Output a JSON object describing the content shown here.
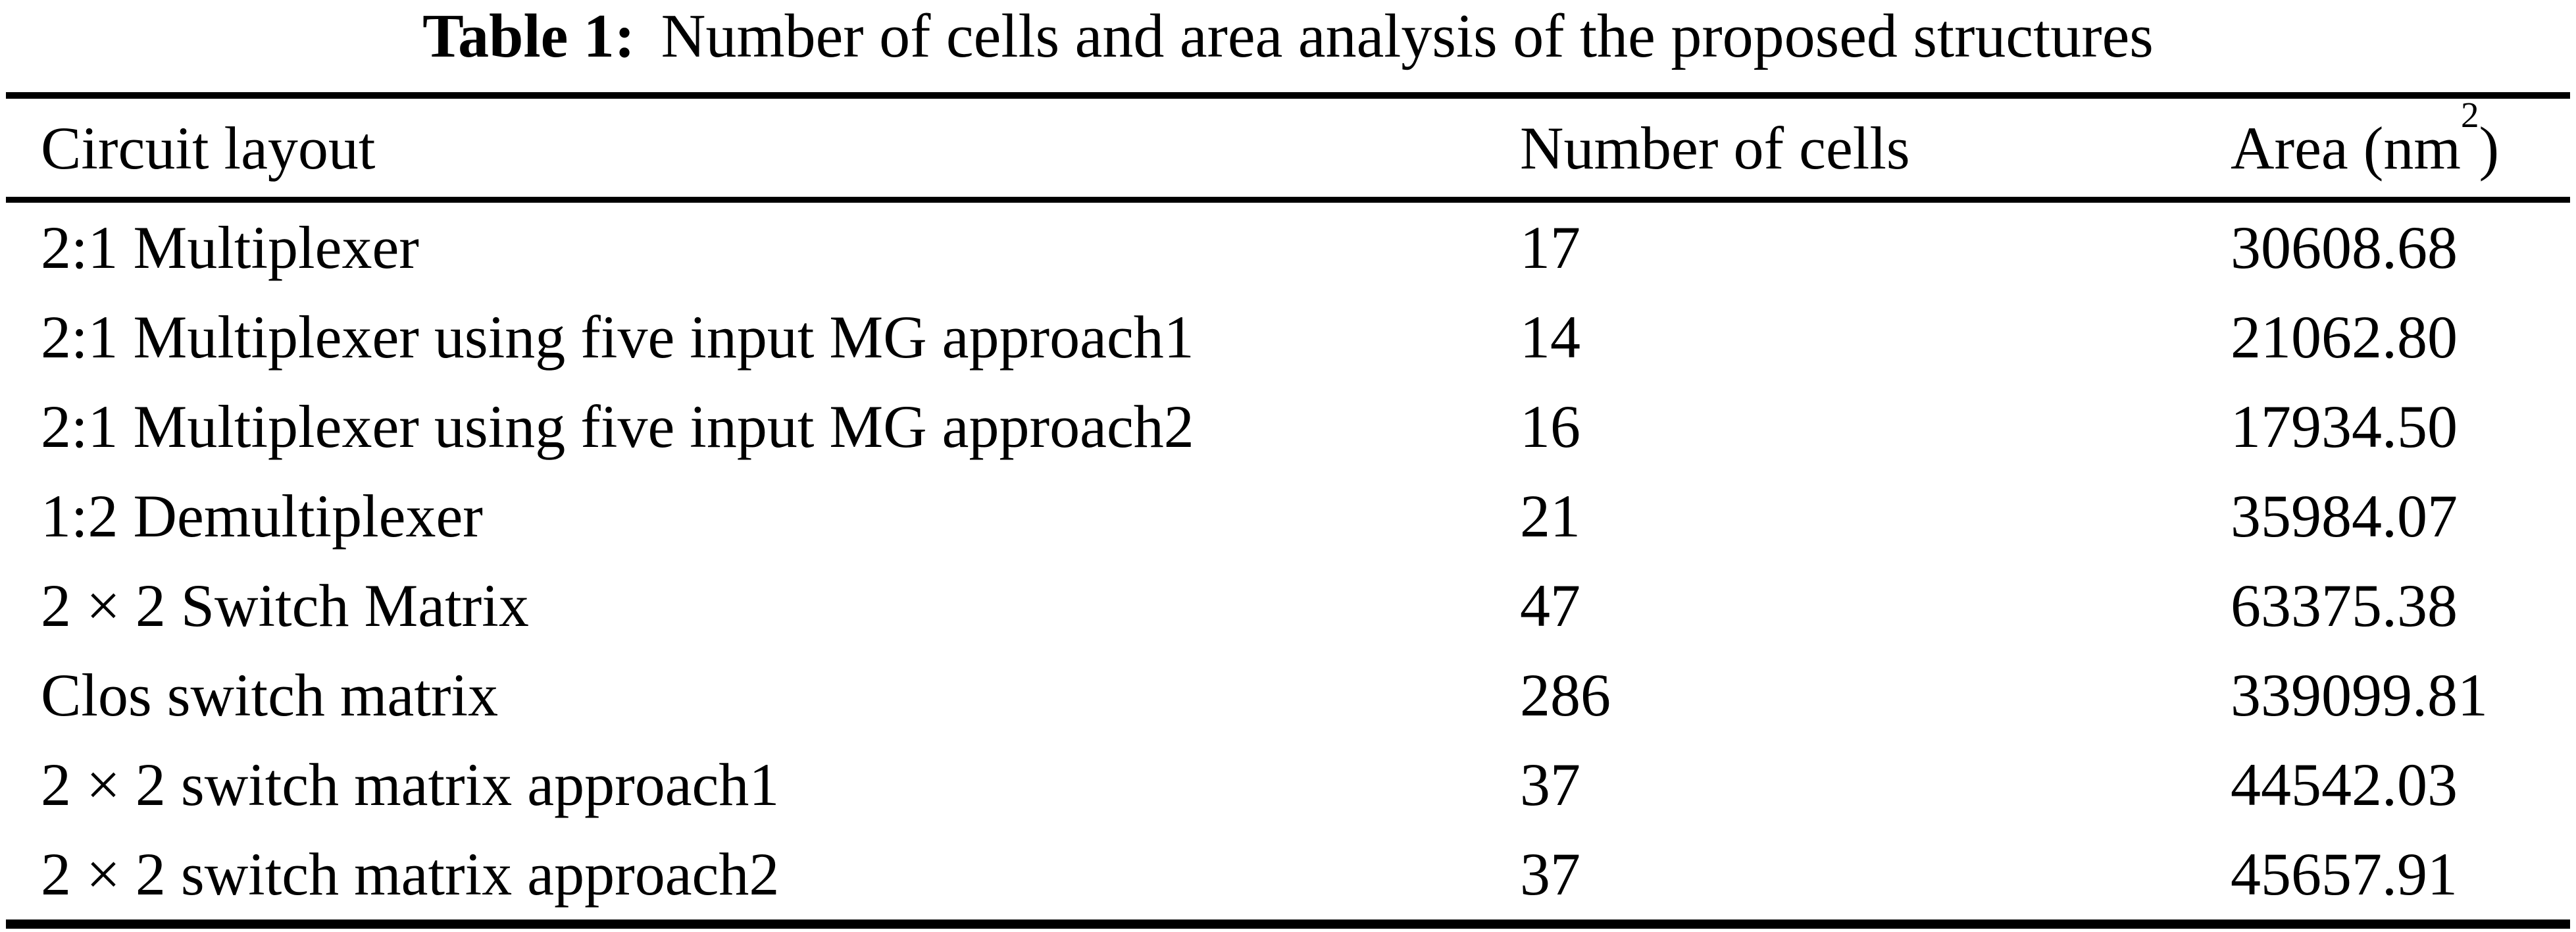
{
  "caption": {
    "label": "Table 1:",
    "text": "Number of cells and area analysis of the proposed structures"
  },
  "table": {
    "headers": {
      "circuit": "Circuit layout",
      "cells": "Number of cells",
      "area_prefix": "Area (nm",
      "area_sup": "2",
      "area_suffix": ")"
    },
    "rows": [
      {
        "circuit": "2:1 Multiplexer",
        "cells": "17",
        "area": "30608.68"
      },
      {
        "circuit": "2:1 Multiplexer using five input MG approach1",
        "cells": "14",
        "area": "21062.80"
      },
      {
        "circuit": "2:1 Multiplexer using five input MG approach2",
        "cells": "16",
        "area": "17934.50"
      },
      {
        "circuit": "1:2 Demultiplexer",
        "cells": "21",
        "area": "35984.07"
      },
      {
        "circuit": "2 × 2 Switch Matrix",
        "cells": "47",
        "area": "63375.38"
      },
      {
        "circuit": "Clos switch matrix",
        "cells": "286",
        "area": "339099.81"
      },
      {
        "circuit": "2 × 2 switch matrix approach1",
        "cells": "37",
        "area": "44542.03"
      },
      {
        "circuit": "2 × 2 switch matrix approach2",
        "cells": "37",
        "area": "45657.91"
      }
    ]
  },
  "colors": {
    "text": "#000000",
    "background": "#ffffff",
    "rule": "#000000"
  }
}
